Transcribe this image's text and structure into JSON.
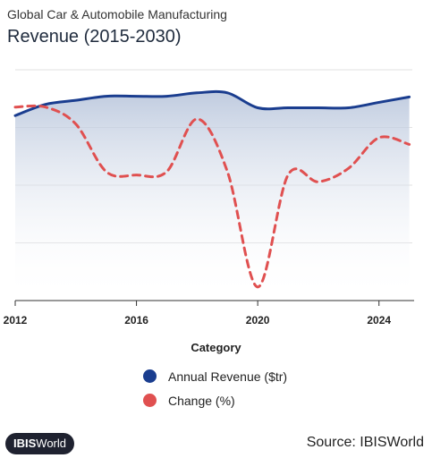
{
  "header": {
    "subtitle": "Global Car & Automobile Manufacturing",
    "title": "Revenue (2015-2030)"
  },
  "chart_data": {
    "type": "line",
    "subtitle": "Global Car & Automobile Manufacturing",
    "title": "Revenue (2015-2030)",
    "xlabel": "Category",
    "ylabel": "",
    "x": [
      2012,
      2013,
      2014,
      2015,
      2016,
      2017,
      2018,
      2019,
      2020,
      2021,
      2022,
      2023,
      2024,
      2025
    ],
    "xticks": [
      2012,
      2016,
      2020,
      2024
    ],
    "xlim": [
      2012,
      2025.1
    ],
    "grid": true,
    "legend_position": "bottom",
    "series": [
      {
        "name": "Annual Revenue ($tr)",
        "color": "#1a3d8f",
        "fill": true,
        "values": [
          2.45,
          2.78,
          2.9,
          3.02,
          3.02,
          3.02,
          3.12,
          3.12,
          2.68,
          2.68,
          2.68,
          2.68,
          2.84,
          3.0
        ]
      },
      {
        "name": "Change (%)",
        "color": "#e05050",
        "dashed": true,
        "values": [
          2.7,
          2.7,
          2.2,
          0.8,
          0.7,
          0.8,
          2.35,
          0.8,
          -2.6,
          0.7,
          0.5,
          0.9,
          1.8,
          1.6
        ]
      }
    ]
  },
  "legend": {
    "items": [
      {
        "label": "Annual Revenue ($tr)",
        "color": "#1a3d8f"
      },
      {
        "label": "Change (%)",
        "color": "#e05050"
      }
    ]
  },
  "footer": {
    "brand_prefix": "IBIS",
    "brand_suffix": "World",
    "source": "Source: IBISWorld"
  }
}
